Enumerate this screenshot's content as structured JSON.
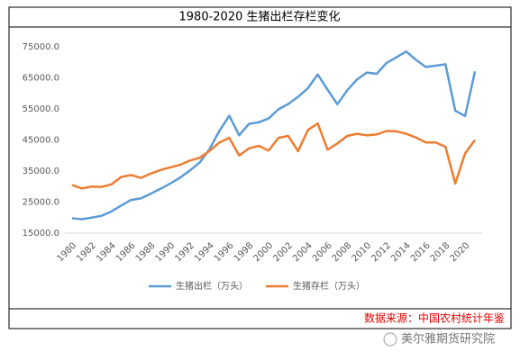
{
  "chart_data": {
    "type": "line",
    "title": "1980-2020 生猪出栏存栏变化",
    "categories": [
      "1980",
      null,
      "1982",
      null,
      "1984",
      null,
      "1986",
      null,
      "1988",
      null,
      "1990",
      null,
      "1992",
      null,
      "1994",
      null,
      "1996",
      null,
      "1998",
      null,
      "2000",
      null,
      "2002",
      null,
      "2004",
      null,
      "2006",
      null,
      "2008",
      null,
      "2010",
      null,
      "2012",
      null,
      "2014",
      null,
      "2016",
      null,
      "2018",
      null,
      "2020",
      null
    ],
    "series": [
      {
        "name": "生猪出栏（万头）",
        "color": "#5b9bd5",
        "values": [
          19800,
          19500,
          20000,
          20600,
          22000,
          23900,
          25700,
          26200,
          27700,
          29300,
          31000,
          32900,
          35200,
          37800,
          42100,
          48000,
          52800,
          46500,
          50200,
          50700,
          51900,
          54900,
          56600,
          58900,
          61700,
          66100,
          61200,
          56500,
          61000,
          64500,
          66700,
          66300,
          69800,
          71600,
          73500,
          70800,
          68500,
          68900,
          69400,
          54400,
          52700,
          67100
        ]
      },
      {
        "name": "生猪存栏（万头）",
        "color": "#ed7d31",
        "values": [
          30500,
          29400,
          30000,
          29900,
          30700,
          33100,
          33700,
          32800,
          34200,
          35300,
          36200,
          37000,
          38400,
          39300,
          41500,
          44200,
          45700,
          40000,
          42300,
          43100,
          41600,
          45700,
          46300,
          41400,
          48200,
          50300,
          41900,
          43900,
          46300,
          47000,
          46500,
          46800,
          47900,
          47800,
          47000,
          45800,
          44200,
          44200,
          42800,
          31000,
          40700,
          45000
        ]
      }
    ],
    "ylim": [
      15000,
      75000
    ],
    "yticks": [
      {
        "value": 15000,
        "label": "15000.0"
      },
      {
        "value": 25000,
        "label": "25000.0"
      },
      {
        "value": 35000,
        "label": "35000.0"
      },
      {
        "value": 45000,
        "label": "45000.0"
      },
      {
        "value": 55000,
        "label": "55000.0"
      },
      {
        "value": 65000,
        "label": "65000.0"
      },
      {
        "value": 75000,
        "label": "75000.0"
      }
    ],
    "legend": "bottom",
    "source": "数据来源：中国农村统计年鉴",
    "watermark": "美尔雅期货研究院"
  }
}
